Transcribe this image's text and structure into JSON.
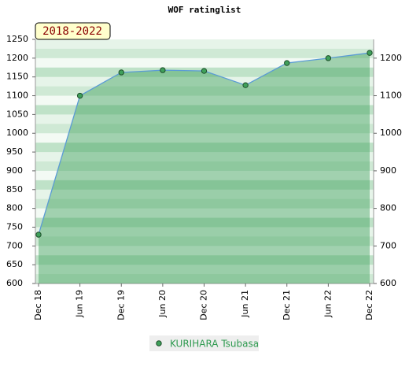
{
  "chart_data": {
    "type": "line",
    "title": "WOF ratinglist",
    "annotation": "2018-2022",
    "categories": [
      "Dec 18",
      "Jun 19",
      "Dec 19",
      "Jun 20",
      "Dec 20",
      "Jun 21",
      "Dec 21",
      "Jun 22",
      "Dec 22"
    ],
    "series": [
      {
        "name": "KURIHARA Tsubasa",
        "color": "#5b9bd5",
        "values": [
          730,
          1100,
          1162,
          1168,
          1166,
          1128,
          1187,
          1200,
          1214
        ]
      }
    ],
    "ylim": [
      600,
      1250
    ],
    "yticks": [
      600,
      650,
      700,
      750,
      800,
      850,
      900,
      950,
      1000,
      1050,
      1100,
      1150,
      1200,
      1250
    ],
    "y2lim": [
      600,
      1250
    ],
    "y2ticks": [
      600,
      700,
      800,
      900,
      1000,
      1100,
      1200
    ]
  }
}
